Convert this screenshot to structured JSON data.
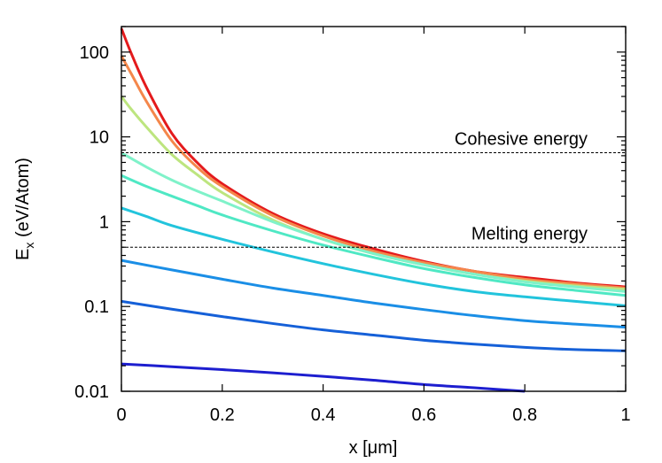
{
  "chart_data": {
    "type": "line",
    "xlabel": "x [μm]",
    "ylabel_main": "E",
    "ylabel_sub": "x",
    "ylabel_rest": " (eV/Atom)",
    "xlim": [
      0,
      1
    ],
    "ylim": [
      0.01,
      200
    ],
    "y_scale": "log",
    "grid": false,
    "x_ticks": [
      {
        "value": 0,
        "label": "0"
      },
      {
        "value": 0.2,
        "label": "0.2"
      },
      {
        "value": 0.4,
        "label": "0.4"
      },
      {
        "value": 0.6,
        "label": "0.6"
      },
      {
        "value": 0.8,
        "label": "0.8"
      },
      {
        "value": 1,
        "label": "1"
      }
    ],
    "y_ticks": [
      {
        "value": 0.01,
        "label": "0.01"
      },
      {
        "value": 0.1,
        "label": "0.1"
      },
      {
        "value": 1,
        "label": "1"
      },
      {
        "value": 10,
        "label": "10"
      },
      {
        "value": 100,
        "label": "100"
      }
    ],
    "reference_lines": [
      {
        "label": "Cohesive energy",
        "y": 6.5
      },
      {
        "label": "Melting energy",
        "y": 0.5
      }
    ],
    "series": [
      {
        "color": "#e41a1c",
        "x": [
          0,
          0.02,
          0.05,
          0.1,
          0.15,
          0.2,
          0.3,
          0.4,
          0.5,
          0.6,
          0.7,
          0.8,
          0.9,
          1.0
        ],
        "y": [
          190,
          95,
          38,
          11,
          5,
          2.8,
          1.25,
          0.72,
          0.48,
          0.34,
          0.26,
          0.22,
          0.19,
          0.17
        ]
      },
      {
        "color": "#f4874b",
        "x": [
          0,
          0.02,
          0.05,
          0.1,
          0.15,
          0.2,
          0.3,
          0.4,
          0.5,
          0.6,
          0.7,
          0.8,
          0.9,
          1.0
        ],
        "y": [
          90,
          55,
          26,
          9,
          4.4,
          2.6,
          1.18,
          0.68,
          0.45,
          0.33,
          0.26,
          0.21,
          0.185,
          0.165
        ]
      },
      {
        "color": "#bde57f",
        "x": [
          0,
          0.02,
          0.05,
          0.1,
          0.15,
          0.2,
          0.3,
          0.4,
          0.5,
          0.6,
          0.7,
          0.8,
          0.9,
          1.0
        ],
        "y": [
          30,
          21,
          13,
          6.2,
          3.6,
          2.2,
          1.05,
          0.62,
          0.42,
          0.31,
          0.24,
          0.2,
          0.175,
          0.16
        ]
      },
      {
        "color": "#7ff2c9",
        "x": [
          0,
          0.05,
          0.1,
          0.15,
          0.2,
          0.3,
          0.4,
          0.5,
          0.6,
          0.7,
          0.8,
          0.9,
          1.0
        ],
        "y": [
          6.5,
          4.4,
          3.1,
          2.3,
          1.75,
          1.0,
          0.62,
          0.42,
          0.31,
          0.24,
          0.195,
          0.17,
          0.15
        ]
      },
      {
        "color": "#4fe8c4",
        "x": [
          0,
          0.05,
          0.1,
          0.15,
          0.2,
          0.3,
          0.4,
          0.5,
          0.6,
          0.7,
          0.8,
          0.9,
          1.0
        ],
        "y": [
          3.5,
          2.6,
          2.0,
          1.55,
          1.2,
          0.78,
          0.53,
          0.38,
          0.28,
          0.22,
          0.18,
          0.155,
          0.135
        ]
      },
      {
        "color": "#22c4dc",
        "x": [
          0,
          0.05,
          0.1,
          0.2,
          0.3,
          0.4,
          0.5,
          0.6,
          0.7,
          0.8,
          0.9,
          1.0
        ],
        "y": [
          1.45,
          1.15,
          0.9,
          0.62,
          0.44,
          0.32,
          0.24,
          0.185,
          0.15,
          0.13,
          0.115,
          0.102
        ]
      },
      {
        "color": "#1a8ee6",
        "x": [
          0,
          0.1,
          0.2,
          0.3,
          0.4,
          0.5,
          0.6,
          0.7,
          0.8,
          0.9,
          1.0
        ],
        "y": [
          0.35,
          0.27,
          0.21,
          0.165,
          0.135,
          0.11,
          0.092,
          0.078,
          0.068,
          0.062,
          0.057
        ]
      },
      {
        "color": "#1560d8",
        "x": [
          0,
          0.1,
          0.2,
          0.3,
          0.4,
          0.5,
          0.6,
          0.7,
          0.8,
          0.9,
          1.0
        ],
        "y": [
          0.115,
          0.093,
          0.076,
          0.063,
          0.053,
          0.046,
          0.04,
          0.036,
          0.033,
          0.031,
          0.03
        ]
      },
      {
        "color": "#1d1ecf",
        "x": [
          0,
          0.1,
          0.2,
          0.3,
          0.4,
          0.5,
          0.6,
          0.7,
          0.8
        ],
        "y": [
          0.021,
          0.0195,
          0.018,
          0.0165,
          0.015,
          0.0135,
          0.012,
          0.011,
          0.01
        ]
      }
    ]
  }
}
